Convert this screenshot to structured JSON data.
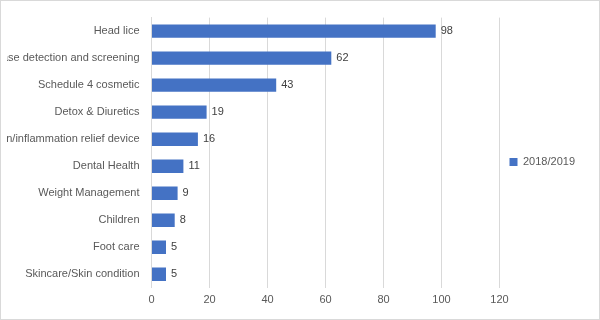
{
  "chart_data": {
    "type": "bar",
    "orientation": "horizontal",
    "categories": [
      "Skincare/Skin condition",
      "Foot care",
      "Children",
      "Weight Management",
      "Dental Health",
      "Pain/inflammation relief device",
      "Detox & Diuretics",
      "Schedule 4 cosmetic",
      "Disease detection and screening",
      "Head lice"
    ],
    "series": [
      {
        "name": "2018/2019",
        "color": "#4472c4",
        "values": [
          5,
          5,
          8,
          9,
          11,
          16,
          19,
          43,
          62,
          98
        ]
      }
    ],
    "xlim": [
      0,
      120
    ],
    "xticks": [
      0,
      20,
      40,
      60,
      80,
      100,
      120
    ],
    "grid": true,
    "legend": "right",
    "data_labels": true
  }
}
